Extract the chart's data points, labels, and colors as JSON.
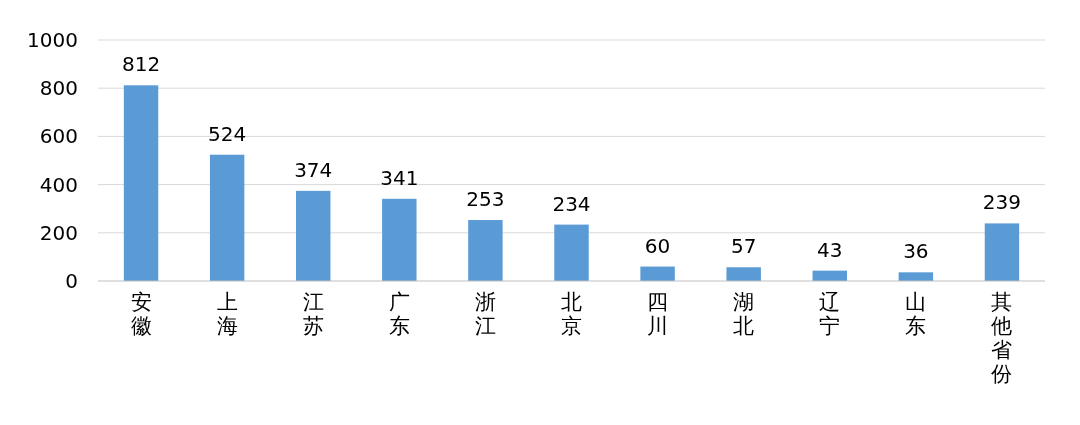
{
  "chart_data": {
    "type": "bar",
    "categories": [
      "安徽",
      "上海",
      "江苏",
      "广东",
      "浙江",
      "北京",
      "四川",
      "湖北",
      "辽宁",
      "山东",
      "其他省份"
    ],
    "values": [
      812,
      524,
      374,
      341,
      253,
      234,
      60,
      57,
      43,
      36,
      239
    ],
    "color": "#5b9bd5",
    "ylim": [
      0,
      1000
    ],
    "yticks": [
      0,
      200,
      400,
      600,
      800,
      1000
    ],
    "grid": "y",
    "data_labels": true
  }
}
